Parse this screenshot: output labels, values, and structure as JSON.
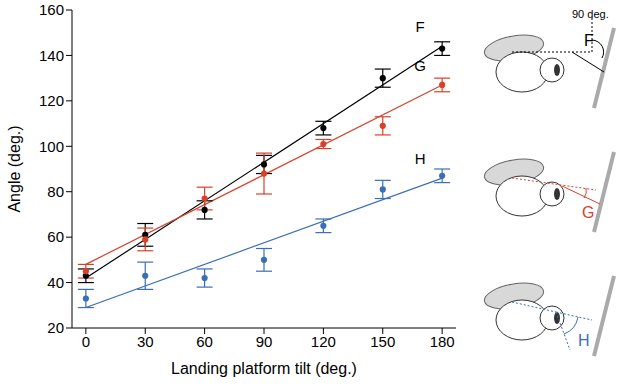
{
  "chart_data": {
    "type": "scatter",
    "x_label": "Landing platform tilt (deg.)",
    "y_label": "Angle (deg.)",
    "x": [
      0,
      30,
      60,
      90,
      120,
      150,
      180
    ],
    "xlim": [
      -7,
      187
    ],
    "xticks": [
      0,
      30,
      60,
      90,
      120,
      150,
      180
    ],
    "ylim": [
      20,
      160
    ],
    "yticks": [
      20,
      40,
      60,
      80,
      100,
      120,
      140,
      160
    ],
    "grid": false,
    "annotation": "90 deg.",
    "fit_x": [
      0,
      180
    ],
    "series": [
      {
        "name": "F",
        "color": "#000000",
        "marker": "circle",
        "line_style": "solid",
        "values": [
          43,
          61,
          72,
          92,
          108,
          130,
          143
        ],
        "errors": [
          3,
          5,
          4,
          4,
          3,
          4,
          3
        ],
        "fit": [
          42,
          144
        ]
      },
      {
        "name": "G",
        "color": "#d9402a",
        "marker": "circle",
        "line_style": "solid",
        "values": [
          45,
          59,
          77,
          88,
          101,
          109,
          127
        ],
        "errors": [
          3,
          5,
          5,
          9,
          2,
          4,
          3
        ],
        "fit": [
          48,
          127
        ]
      },
      {
        "name": "H",
        "color": "#3a6fb5",
        "marker": "circle",
        "line_style": "solid",
        "values": [
          33,
          43,
          42,
          50,
          65,
          81,
          87
        ],
        "errors": [
          4,
          6,
          4,
          5,
          3,
          4,
          3
        ],
        "fit": [
          29,
          86
        ]
      }
    ]
  }
}
